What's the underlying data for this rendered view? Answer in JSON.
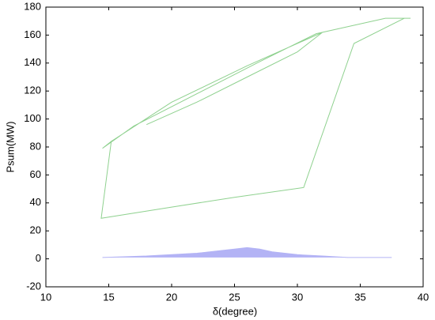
{
  "chart_data": {
    "type": "line",
    "x_label": "δ(degree)",
    "y_label": "Psum(MW)",
    "xlim": [
      10,
      40
    ],
    "xticks": [
      10,
      15,
      20,
      25,
      30,
      35,
      40
    ],
    "ylim": [
      -20,
      180
    ],
    "yticks": [
      -20,
      0,
      20,
      40,
      60,
      80,
      100,
      120,
      140,
      160,
      180
    ],
    "series": [
      {
        "color": "#8fd18f",
        "area": false,
        "x": [
          18,
          22,
          26,
          30,
          32,
          31.5,
          27,
          22,
          17,
          14.5,
          15.2,
          14.4,
          20,
          25,
          30.5,
          34.5,
          38.5,
          39,
          37,
          32,
          26,
          20,
          15.2
        ],
        "values": [
          96,
          112,
          130,
          148,
          162,
          161,
          141,
          118,
          95,
          79,
          84,
          29,
          37,
          44,
          51,
          154,
          172,
          172,
          172,
          162,
          138,
          112,
          84
        ]
      },
      {
        "color": "#b3b3f5",
        "area": true,
        "x": [
          14.5,
          18,
          20,
          22,
          24,
          25,
          26,
          27,
          28,
          30,
          32,
          34,
          37.5
        ],
        "values": [
          1,
          2,
          3,
          4,
          6,
          7,
          8,
          7,
          5,
          3,
          2,
          1,
          1
        ]
      }
    ]
  }
}
